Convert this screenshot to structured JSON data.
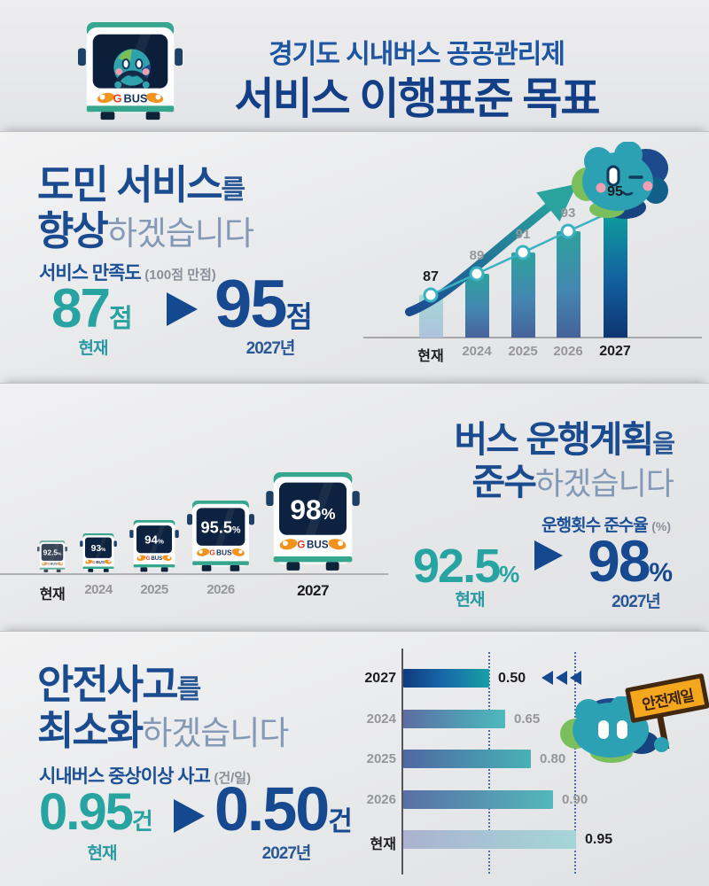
{
  "header": {
    "subtitle": "경기도 시내버스 공공관리제",
    "title": "서비스 이행표준 목표",
    "logo": {
      "g": "G",
      "bus": "BUS"
    }
  },
  "section1": {
    "heading_main": "도민 서비스",
    "heading_particle": "를",
    "heading_emph": "향상",
    "heading_rest": "하겠습니다",
    "metric_label": "서비스 만족도",
    "metric_note": "(100점 만점)",
    "current": {
      "value": "87",
      "unit": "점",
      "label": "현재"
    },
    "target": {
      "value": "95",
      "unit": "점",
      "label": "2027년"
    }
  },
  "section2": {
    "heading_main": "버스 운행계획",
    "heading_particle": "을",
    "heading_emph": "준수",
    "heading_rest": "하겠습니다",
    "metric_label": "운행횟수 준수율",
    "metric_note": "(%)",
    "current": {
      "value": "92.5",
      "unit": "%",
      "label": "현재"
    },
    "target": {
      "value": "98",
      "unit": "%",
      "label": "2027년"
    }
  },
  "section3": {
    "heading_main": "안전사고",
    "heading_particle": "를",
    "heading_emph": "최소화",
    "heading_rest": "하겠습니다",
    "metric_label": "시내버스 중상이상 사고",
    "metric_note": "(건/일)",
    "current": {
      "value": "0.95",
      "unit": "건",
      "label": "현재"
    },
    "target": {
      "value": "0.50",
      "unit": "건",
      "label": "2027년"
    },
    "sign_text": "안전제일"
  },
  "chart_data": [
    {
      "type": "bar",
      "title": "서비스 만족도 (100점 만점)",
      "categories": [
        "현재",
        "2024",
        "2025",
        "2026",
        "2027"
      ],
      "values": [
        87,
        89,
        91,
        93,
        95
      ],
      "value_labels": [
        "87",
        "89",
        "91",
        "93",
        "95"
      ],
      "ylim": [
        83,
        97
      ],
      "legend_position": "none",
      "grid": false,
      "notes": "vertical gradient bars with teal trend line and circular markers, arrow motif"
    },
    {
      "type": "bar",
      "title": "운행횟수 준수율 (%) — pictorial bus chart",
      "categories": [
        "현재",
        "2024",
        "2025",
        "2026",
        "2027"
      ],
      "values": [
        92.5,
        93,
        94,
        95.5,
        98
      ],
      "value_labels": [
        "92.5%",
        "93%",
        "94%",
        "95.5%",
        "98%"
      ],
      "notes": "buses of increasing size, percentage shown on windshield"
    },
    {
      "type": "bar",
      "orientation": "horizontal",
      "title": "시내버스 중상이상 사고 (건/일)",
      "categories": [
        "2027",
        "2024",
        "2025",
        "2026",
        "현재"
      ],
      "values": [
        0.5,
        0.65,
        0.8,
        0.9,
        0.95
      ],
      "value_labels": [
        "0.50",
        "0.65",
        "0.80",
        "0.90",
        "0.95"
      ],
      "xlim": [
        0,
        1
      ],
      "grid": "dotted reference lines at 0.50 and 0.95"
    }
  ],
  "colors": {
    "navy": "#1b4b8f",
    "navy_dark": "#123f86",
    "teal": "#27a3a1",
    "suffix_light": "#8399b6",
    "gray_label": "#96969a",
    "dark_label": "#1c1c1e",
    "trend_line": "#39b2c3",
    "sign_bg": "#f5a61f",
    "sign_border": "#42280f",
    "bus_roof": "#36a78e",
    "logo_g_red": "#e8421d",
    "headlight_orange": "#f0941f"
  }
}
